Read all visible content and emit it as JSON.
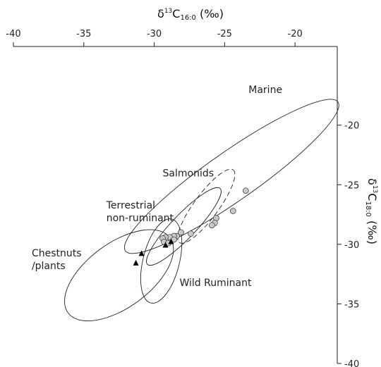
{
  "chart_data": {
    "type": "scatter",
    "x_axis": {
      "title": "δ¹³C16:0 (‰)",
      "title_parts": {
        "delta": "δ",
        "sup": "13",
        "base": "C",
        "sub": "16:0",
        "unit": " (‰)"
      },
      "range": [
        -40,
        -17
      ],
      "ticks": [
        -40,
        -35,
        -30,
        -25,
        -20
      ],
      "tick_labels": [
        "-40",
        "-35",
        "-30",
        "-25",
        "-20"
      ],
      "position": "top"
    },
    "y_axis": {
      "title": "δ¹³C18:0 (‰)",
      "title_parts": {
        "delta": "δ",
        "sup": "13",
        "base": "C",
        "sub": "18:0",
        "unit": " (‰)"
      },
      "range": [
        -40,
        -16
      ],
      "ticks": [
        -20,
        -25,
        -30,
        -35,
        -40
      ],
      "tick_labels": [
        "-20",
        "-25",
        "-30",
        "-35",
        "-40"
      ],
      "position": "right"
    },
    "grid": false,
    "regions": [
      {
        "label": [
          "Marine"
        ],
        "cx": -24.5,
        "cy": -24.3,
        "rx": 9.8,
        "ry": 1.9,
        "angle_deg": 39.6,
        "dashed": false,
        "label_at": [
          -23.3,
          -17.3
        ]
      },
      {
        "label": [
          "Salmonids"
        ],
        "cx": -26.3,
        "cy": -26.8,
        "rx": 3.6,
        "ry": 0.9,
        "angle_deg": 58.0,
        "dashed": true,
        "label_at": [
          -29.4,
          -24.3
        ]
      },
      {
        "label": [
          "Terrestrial",
          "non-ruminant"
        ],
        "cx": -27.9,
        "cy": -28.5,
        "rx": 4.1,
        "ry": 0.9,
        "angle_deg": 51.0,
        "dashed": false,
        "label_at": [
          -33.4,
          -27.0
        ]
      },
      {
        "label": [
          "Chestnuts",
          "/plants"
        ],
        "cx": -32.5,
        "cy": -32.6,
        "rx": 4.8,
        "ry": 2.5,
        "angle_deg": 41.0,
        "dashed": false,
        "label_at": [
          -38.7,
          -31.0
        ]
      },
      {
        "label": [
          "Wild Ruminant"
        ],
        "cx": -29.5,
        "cy": -31.4,
        "rx": 3.6,
        "ry": 1.3,
        "angle_deg": 78.0,
        "dashed": false,
        "label_at": [
          -28.2,
          -33.5
        ]
      }
    ],
    "series": [
      {
        "marker": "circle",
        "points": [
          [
            -23.5,
            -25.5
          ],
          [
            -24.4,
            -27.2
          ],
          [
            -25.6,
            -27.8
          ],
          [
            -25.7,
            -28.2
          ],
          [
            -25.9,
            -28.4
          ],
          [
            -27.4,
            -29.1
          ],
          [
            -28.1,
            -29.0
          ],
          [
            -28.4,
            -29.3
          ],
          [
            -28.6,
            -29.3
          ],
          [
            -28.9,
            -29.4
          ],
          [
            -29.2,
            -29.4
          ],
          [
            -29.4,
            -29.5
          ],
          [
            -28.6,
            -29.6
          ],
          [
            -29.3,
            -29.8
          ],
          [
            -29.0,
            -29.9
          ]
        ]
      },
      {
        "marker": "triangle",
        "points": [
          [
            -28.8,
            -29.8
          ],
          [
            -29.2,
            -30.1
          ],
          [
            -30.9,
            -30.8
          ],
          [
            -31.3,
            -31.6
          ]
        ]
      }
    ]
  }
}
